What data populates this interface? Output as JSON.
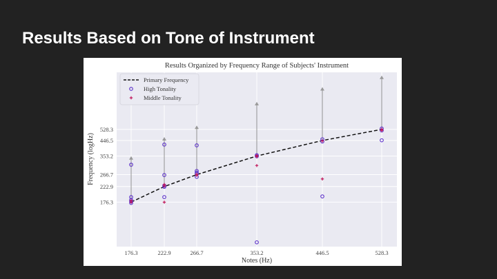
{
  "slide": {
    "title": "Results Based on Tone of Instrument"
  },
  "chart_data": {
    "type": "scatter",
    "title": "Results Organized by Frequency Range of Subjects' Instrument",
    "xlabel": "Notes (Hz)",
    "ylabel": "Frequency (logHz)",
    "log_scale": true,
    "grid": true,
    "legend_position": "top-left",
    "background_color": "#eaeaf2",
    "x_ticks": [
      "176.3",
      "222.9",
      "266.7",
      "353.2",
      "446.5",
      "528.3"
    ],
    "y_ticks": [
      "176.3",
      "222.9",
      "266.7",
      "353.2",
      "446.5",
      "528.3"
    ],
    "legend": [
      {
        "label": "Primary Frequency",
        "kind": "dashed-line",
        "color": "#111111"
      },
      {
        "label": "High Tonality",
        "kind": "open-circle",
        "color": "#5b2fc9"
      },
      {
        "label": "Middle Tonality",
        "kind": "plus",
        "color": "#c2185b"
      }
    ],
    "primary_frequency": {
      "x": [
        176.3,
        222.9,
        266.7,
        353.2,
        446.5,
        528.3
      ],
      "y": [
        176.3,
        222.9,
        266.7,
        353.2,
        446.5,
        528.3
      ]
    },
    "range_arrows": [
      {
        "x": 176.3,
        "from": 176.3,
        "to": 352.6
      },
      {
        "x": 222.9,
        "from": 222.9,
        "to": 470
      },
      {
        "x": 266.7,
        "from": 266.7,
        "to": 560
      },
      {
        "x": 353.2,
        "from": 353.2,
        "to": 800
      },
      {
        "x": 446.5,
        "from": 446.5,
        "to": 1000
      },
      {
        "x": 528.3,
        "from": 528.3,
        "to": 1190
      }
    ],
    "series": [
      {
        "name": "High Tonality",
        "color": "#5b2fc9",
        "points": [
          [
            176.3,
            174
          ],
          [
            176.3,
            182
          ],
          [
            176.3,
            190
          ],
          [
            176.3,
            310
          ],
          [
            176.3,
            178
          ],
          [
            222.9,
            190
          ],
          [
            222.9,
            222
          ],
          [
            222.9,
            265
          ],
          [
            222.9,
            420
          ],
          [
            222.9,
            226
          ],
          [
            266.7,
            258
          ],
          [
            266.7,
            270
          ],
          [
            266.7,
            282
          ],
          [
            266.7,
            415
          ],
          [
            266.7,
            275
          ],
          [
            353.2,
            352
          ],
          [
            353.2,
            358
          ],
          [
            353.2,
            96
          ],
          [
            446.5,
            440
          ],
          [
            446.5,
            455
          ],
          [
            446.5,
            192
          ],
          [
            528.3,
            520
          ],
          [
            528.3,
            535
          ],
          [
            528.3,
            448
          ]
        ]
      },
      {
        "name": "Middle Tonality",
        "color": "#c2185b",
        "points": [
          [
            176.3,
            176
          ],
          [
            176.3,
            180
          ],
          [
            222.9,
            176
          ],
          [
            222.9,
            230
          ],
          [
            222.9,
            225
          ],
          [
            266.7,
            268
          ],
          [
            266.7,
            264
          ],
          [
            353.2,
            306
          ],
          [
            353.2,
            350
          ],
          [
            353.2,
            356
          ],
          [
            446.5,
            444
          ],
          [
            446.5,
            250
          ],
          [
            528.3,
            528
          ],
          [
            528.3,
            520
          ]
        ]
      }
    ]
  }
}
